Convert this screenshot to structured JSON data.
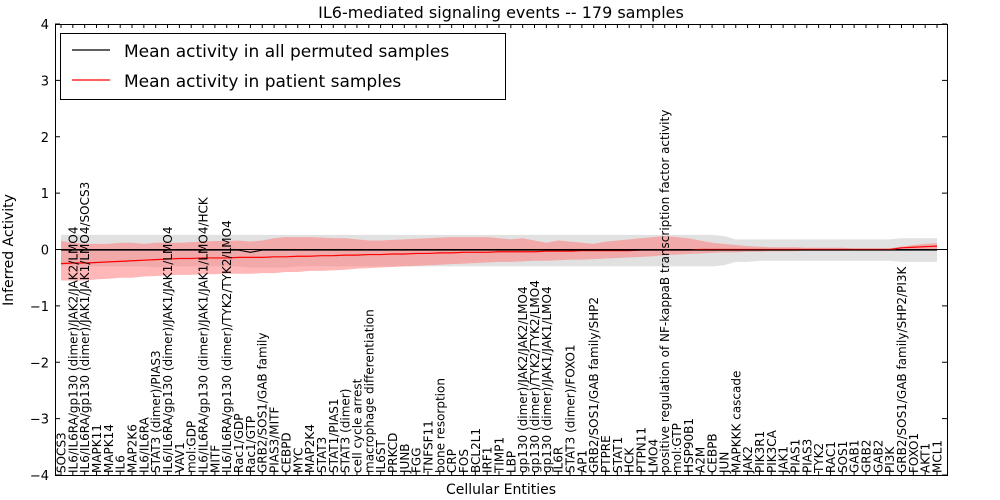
{
  "chart_data": {
    "type": "line",
    "title": "IL6-mediated signaling events -- 179 samples",
    "xlabel": "Cellular Entities",
    "ylabel": "Inferred Activity",
    "ylim": [
      -4,
      4
    ],
    "yticks": [
      -4,
      -3,
      -2,
      -1,
      0,
      1,
      2,
      3,
      4
    ],
    "legend_position": "top-left",
    "colors": {
      "permuted_line": "#000000",
      "patient_line": "#ff0000",
      "permuted_band": "#c8c8c8",
      "patient_band": "#ff7b7b"
    },
    "categories": [
      "SOCS3",
      "IL6/IL6RA/gp130 (dimer)/JAK2/JAK2/LMO4",
      "IL6/IL6RA/gp130 (dimer)/JAK1/JAK1/LMO4/SOCS3",
      "MAPK11",
      "MAPK14",
      "IL6",
      "MAP2K6",
      "IL6/IL6RA",
      "STAT3 (dimer)/PIAS3",
      "IL6/IL6RA/gp130 (dimer)/JAK1/JAK1/LMO4",
      "VAV1",
      "mol:GDP",
      "IL6/IL6RA/gp130 (dimer)/JAK1/JAK1/LMO4/HCK",
      "MITF",
      "IL6/IL6RA/gp130 (dimer)/TYK2/TYK2/LMO4",
      "Rac1/GDP",
      "Rac1/GTP",
      "GRB2/SOS1/GAB family",
      "PIAS3/MITF",
      "CEBPD",
      "MYC",
      "MAP2K4",
      "STAT3",
      "STAT1/PIAS1",
      "STAT3 (dimer)",
      "cell cycle arrest",
      "macrophage differentiation",
      "IL6ST",
      "PRKCD",
      "JUNB",
      "FGG",
      "TNFSF11",
      "bone resorption",
      "CRP",
      "FOS",
      "BCL2L1",
      "IRF1",
      "TIMP1",
      "LBP",
      "gp130 (dimer)/JAK2/JAK2/LMO4",
      "gp130 (dimer)/TYK2/TYK2/LMO4",
      "gp130 (dimer)/JAK1/JAK1/LMO4",
      "IL6R",
      "STAT3 (dimer)/FOXO1",
      "AP1",
      "GRB2/SOS1/GAB family/SHP2",
      "PTPRE",
      "STAT1",
      "HCK",
      "PTPN11",
      "LMO4",
      "positive regulation of NF-kappaB transcription factor activity",
      "mol:GTP",
      "HSP90B1",
      "A2M",
      "CEBPB",
      "JUN",
      "MAPKKK cascade",
      "JAK2",
      "PIK3R1",
      "PIK3CA",
      "JAK1",
      "PIAS1",
      "PIAS3",
      "TYK2",
      "RAC1",
      "SOS1",
      "GAB1",
      "GRB2",
      "GAB2",
      "PI3K",
      "GRB2/SOS1/GAB family/SHP2/PI3K",
      "FOXO1",
      "AKT1",
      "MCL1"
    ],
    "series": [
      {
        "name": "Mean activity in all permuted samples",
        "color": "#000000",
        "values": [
          -0.01,
          -0.01,
          -0.01,
          -0.01,
          -0.01,
          -0.01,
          -0.01,
          -0.01,
          -0.01,
          -0.01,
          -0.01,
          -0.01,
          -0.01,
          -0.01,
          -0.01,
          -0.01,
          -0.05,
          -0.01,
          -0.01,
          -0.01,
          -0.01,
          -0.01,
          -0.01,
          -0.01,
          -0.01,
          -0.01,
          -0.01,
          -0.01,
          -0.01,
          -0.01,
          -0.01,
          -0.01,
          -0.01,
          -0.01,
          -0.01,
          -0.01,
          -0.01,
          -0.01,
          -0.01,
          -0.01,
          -0.01,
          -0.01,
          -0.01,
          -0.01,
          -0.01,
          -0.01,
          -0.01,
          -0.01,
          -0.01,
          -0.01,
          -0.01,
          -0.01,
          -0.01,
          -0.01,
          -0.01,
          -0.01,
          -0.01,
          -0.01,
          -0.01,
          -0.01,
          -0.01,
          -0.01,
          -0.01,
          -0.01,
          -0.01,
          -0.01,
          -0.01,
          -0.01,
          -0.01,
          -0.01,
          -0.01,
          -0.01,
          -0.01,
          -0.01,
          -0.01
        ],
        "band_lower": [
          -0.28,
          -0.29,
          -0.3,
          -0.3,
          -0.3,
          -0.3,
          -0.3,
          -0.3,
          -0.32,
          -0.3,
          -0.3,
          -0.3,
          -0.3,
          -0.3,
          -0.3,
          -0.3,
          -0.32,
          -0.32,
          -0.32,
          -0.32,
          -0.3,
          -0.3,
          -0.3,
          -0.3,
          -0.3,
          -0.3,
          -0.3,
          -0.3,
          -0.3,
          -0.3,
          -0.3,
          -0.3,
          -0.3,
          -0.3,
          -0.3,
          -0.3,
          -0.3,
          -0.3,
          -0.3,
          -0.3,
          -0.3,
          -0.3,
          -0.3,
          -0.3,
          -0.3,
          -0.3,
          -0.3,
          -0.3,
          -0.3,
          -0.3,
          -0.3,
          -0.3,
          -0.3,
          -0.3,
          -0.3,
          -0.3,
          -0.28,
          -0.22,
          -0.22,
          -0.2,
          -0.2,
          -0.2,
          -0.2,
          -0.2,
          -0.2,
          -0.2,
          -0.2,
          -0.2,
          -0.2,
          -0.2,
          -0.2,
          -0.22,
          -0.22,
          -0.22,
          -0.22
        ],
        "band_upper": [
          0.26,
          0.26,
          0.26,
          0.26,
          0.26,
          0.26,
          0.26,
          0.26,
          0.26,
          0.26,
          0.26,
          0.26,
          0.26,
          0.26,
          0.26,
          0.26,
          0.26,
          0.26,
          0.26,
          0.26,
          0.26,
          0.26,
          0.26,
          0.26,
          0.26,
          0.26,
          0.26,
          0.26,
          0.26,
          0.26,
          0.26,
          0.26,
          0.26,
          0.26,
          0.26,
          0.26,
          0.26,
          0.26,
          0.26,
          0.26,
          0.26,
          0.26,
          0.26,
          0.26,
          0.26,
          0.26,
          0.26,
          0.26,
          0.26,
          0.26,
          0.26,
          0.26,
          0.26,
          0.26,
          0.26,
          0.26,
          0.24,
          0.18,
          0.18,
          0.18,
          0.18,
          0.18,
          0.18,
          0.18,
          0.18,
          0.18,
          0.18,
          0.18,
          0.18,
          0.18,
          0.18,
          0.2,
          0.2,
          0.2,
          0.2
        ]
      },
      {
        "name": "Mean activity in patient samples",
        "color": "#ff0000",
        "values": [
          -0.25,
          -0.24,
          -0.24,
          -0.23,
          -0.22,
          -0.21,
          -0.2,
          -0.19,
          -0.18,
          -0.17,
          -0.16,
          -0.16,
          -0.15,
          -0.15,
          -0.15,
          -0.14,
          -0.14,
          -0.14,
          -0.13,
          -0.13,
          -0.12,
          -0.12,
          -0.11,
          -0.11,
          -0.1,
          -0.1,
          -0.09,
          -0.09,
          -0.08,
          -0.08,
          -0.07,
          -0.07,
          -0.06,
          -0.06,
          -0.05,
          -0.05,
          -0.05,
          -0.04,
          -0.04,
          -0.04,
          -0.04,
          -0.03,
          -0.03,
          -0.03,
          -0.02,
          -0.02,
          -0.02,
          -0.02,
          -0.02,
          -0.01,
          -0.01,
          -0.01,
          -0.01,
          -0.01,
          0.0,
          0.0,
          0.0,
          0.0,
          0.0,
          0.0,
          0.0,
          0.0,
          0.0,
          0.0,
          0.0,
          0.0,
          0.0,
          0.0,
          0.0,
          0.0,
          0.0,
          0.03,
          0.04,
          0.05,
          0.06
        ],
        "band_lower": [
          -0.55,
          -0.55,
          -0.55,
          -0.53,
          -0.52,
          -0.5,
          -0.5,
          -0.48,
          -0.47,
          -0.46,
          -0.45,
          -0.45,
          -0.44,
          -0.44,
          -0.43,
          -0.43,
          -0.43,
          -0.42,
          -0.42,
          -0.4,
          -0.4,
          -0.38,
          -0.38,
          -0.37,
          -0.36,
          -0.34,
          -0.33,
          -0.32,
          -0.31,
          -0.3,
          -0.29,
          -0.28,
          -0.27,
          -0.26,
          -0.25,
          -0.24,
          -0.23,
          -0.22,
          -0.22,
          -0.21,
          -0.2,
          -0.2,
          -0.19,
          -0.18,
          -0.18,
          -0.17,
          -0.16,
          -0.15,
          -0.14,
          -0.13,
          -0.12,
          -0.1,
          -0.09,
          -0.08,
          -0.07,
          -0.06,
          -0.05,
          -0.05,
          -0.04,
          -0.04,
          -0.03,
          -0.03,
          -0.03,
          -0.02,
          -0.02,
          -0.02,
          -0.02,
          -0.01,
          -0.01,
          -0.01,
          -0.01,
          0.0,
          0.0,
          0.0,
          0.01
        ],
        "band_upper": [
          0.15,
          0.12,
          0.1,
          0.1,
          0.1,
          0.12,
          0.12,
          0.1,
          0.12,
          0.12,
          0.12,
          0.13,
          0.14,
          0.15,
          0.15,
          0.16,
          0.14,
          0.16,
          0.2,
          0.22,
          0.22,
          0.22,
          0.21,
          0.2,
          0.2,
          0.18,
          0.16,
          0.16,
          0.17,
          0.18,
          0.19,
          0.2,
          0.21,
          0.22,
          0.22,
          0.22,
          0.22,
          0.2,
          0.18,
          0.2,
          0.16,
          0.12,
          0.16,
          0.14,
          0.12,
          0.1,
          0.14,
          0.16,
          0.18,
          0.2,
          0.22,
          0.24,
          0.22,
          0.2,
          0.16,
          0.12,
          0.1,
          0.08,
          0.06,
          0.05,
          0.04,
          0.04,
          0.04,
          0.03,
          0.03,
          0.03,
          0.03,
          0.02,
          0.02,
          0.02,
          0.02,
          0.05,
          0.08,
          0.1,
          0.11
        ]
      }
    ]
  }
}
